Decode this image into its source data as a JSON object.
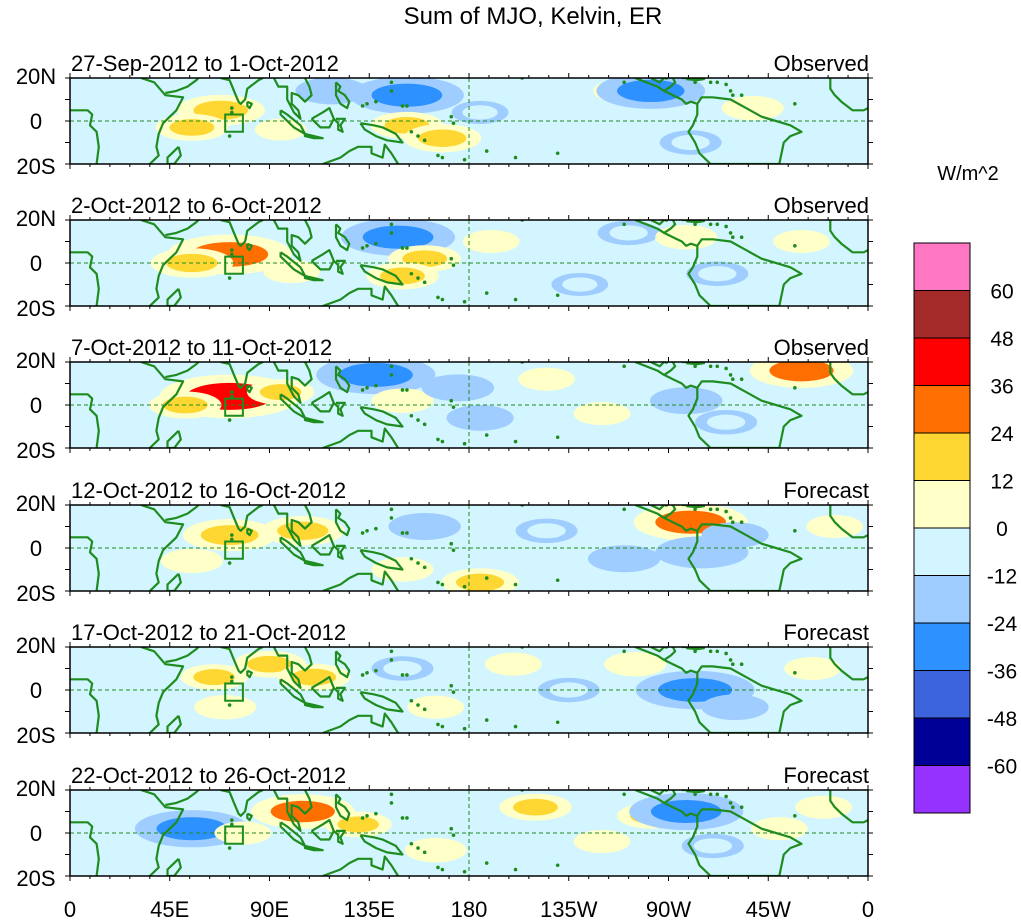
{
  "chart_data": {
    "type": "heatmap",
    "title": "Sum of MJO, Kelvin, ER",
    "y_tick_labels": [
      "20N",
      "0",
      "20S"
    ],
    "x_tick_labels": [
      "0",
      "45E",
      "90E",
      "135E",
      "180",
      "135W",
      "90W",
      "45W",
      "0"
    ],
    "lat_range": [
      -20,
      20
    ],
    "lon_range": [
      0,
      360
    ],
    "grid": false,
    "legend_position": "right",
    "panels": [
      {
        "label": "27-Sep-2012 to 1-Oct-2012",
        "type": "Observed",
        "anomalies": [
          {
            "lon": 68,
            "lat": 5,
            "value": 20
          },
          {
            "lon": 55,
            "lat": -3,
            "value": 14
          },
          {
            "lon": 95,
            "lat": -4,
            "value": 6
          },
          {
            "lon": 118,
            "lat": 14,
            "value": -14
          },
          {
            "lon": 152,
            "lat": 12,
            "value": -30
          },
          {
            "lon": 152,
            "lat": -2,
            "value": 14
          },
          {
            "lon": 168,
            "lat": -8,
            "value": 16
          },
          {
            "lon": 185,
            "lat": 4,
            "value": -8
          },
          {
            "lon": 250,
            "lat": 14,
            "value": 10
          },
          {
            "lon": 262,
            "lat": 14,
            "value": -28
          },
          {
            "lon": 280,
            "lat": -10,
            "value": -10
          },
          {
            "lon": 308,
            "lat": 6,
            "value": 10
          }
        ]
      },
      {
        "label": "2-Oct-2012 to 6-Oct-2012",
        "type": "Observed",
        "anomalies": [
          {
            "lon": 72,
            "lat": 4,
            "value": 34
          },
          {
            "lon": 55,
            "lat": 0,
            "value": 18
          },
          {
            "lon": 100,
            "lat": -4,
            "value": 8
          },
          {
            "lon": 148,
            "lat": 12,
            "value": -30
          },
          {
            "lon": 160,
            "lat": 2,
            "value": 14
          },
          {
            "lon": 150,
            "lat": -6,
            "value": 14
          },
          {
            "lon": 190,
            "lat": 10,
            "value": 8
          },
          {
            "lon": 230,
            "lat": -10,
            "value": -8
          },
          {
            "lon": 252,
            "lat": 14,
            "value": -10
          },
          {
            "lon": 278,
            "lat": 12,
            "value": 10
          },
          {
            "lon": 292,
            "lat": -5,
            "value": -10
          },
          {
            "lon": 330,
            "lat": 10,
            "value": 8
          }
        ]
      },
      {
        "label": "7-Oct-2012 to 11-Oct-2012",
        "type": "Observed",
        "anomalies": [
          {
            "lon": 72,
            "lat": 4,
            "value": 40
          },
          {
            "lon": 52,
            "lat": 0,
            "value": 14
          },
          {
            "lon": 95,
            "lat": 6,
            "value": 12
          },
          {
            "lon": 138,
            "lat": 14,
            "value": -32
          },
          {
            "lon": 150,
            "lat": 2,
            "value": 10
          },
          {
            "lon": 175,
            "lat": 8,
            "value": -14
          },
          {
            "lon": 185,
            "lat": -6,
            "value": -12
          },
          {
            "lon": 215,
            "lat": 12,
            "value": 8
          },
          {
            "lon": 240,
            "lat": -4,
            "value": 8
          },
          {
            "lon": 278,
            "lat": 2,
            "value": -14
          },
          {
            "lon": 296,
            "lat": -8,
            "value": -10
          },
          {
            "lon": 330,
            "lat": 16,
            "value": 26
          }
        ]
      },
      {
        "label": "12-Oct-2012 to 16-Oct-2012",
        "type": "Forecast",
        "anomalies": [
          {
            "lon": 72,
            "lat": 6,
            "value": 22
          },
          {
            "lon": 105,
            "lat": 8,
            "value": 18
          },
          {
            "lon": 55,
            "lat": -6,
            "value": 10
          },
          {
            "lon": 160,
            "lat": 10,
            "value": -14
          },
          {
            "lon": 150,
            "lat": -10,
            "value": 10
          },
          {
            "lon": 185,
            "lat": -16,
            "value": 16
          },
          {
            "lon": 215,
            "lat": 8,
            "value": -10
          },
          {
            "lon": 250,
            "lat": -5,
            "value": -14
          },
          {
            "lon": 280,
            "lat": 12,
            "value": 30
          },
          {
            "lon": 285,
            "lat": -2,
            "value": -22
          },
          {
            "lon": 300,
            "lat": 6,
            "value": -12
          },
          {
            "lon": 345,
            "lat": 10,
            "value": 8
          }
        ]
      },
      {
        "label": "17-Oct-2012 to 21-Oct-2012",
        "type": "Forecast",
        "anomalies": [
          {
            "lon": 65,
            "lat": 6,
            "value": 12
          },
          {
            "lon": 90,
            "lat": 12,
            "value": 14
          },
          {
            "lon": 110,
            "lat": 6,
            "value": 14
          },
          {
            "lon": 70,
            "lat": -8,
            "value": 10
          },
          {
            "lon": 150,
            "lat": 10,
            "value": -10
          },
          {
            "lon": 165,
            "lat": -8,
            "value": 8
          },
          {
            "lon": 200,
            "lat": 12,
            "value": 8
          },
          {
            "lon": 225,
            "lat": 0,
            "value": -10
          },
          {
            "lon": 255,
            "lat": 12,
            "value": 10
          },
          {
            "lon": 282,
            "lat": 0,
            "value": -32
          },
          {
            "lon": 300,
            "lat": -8,
            "value": -12
          },
          {
            "lon": 335,
            "lat": 10,
            "value": 8
          }
        ]
      },
      {
        "label": "22-Oct-2012 to 26-Oct-2012",
        "type": "Forecast",
        "anomalies": [
          {
            "lon": 55,
            "lat": 2,
            "value": -30
          },
          {
            "lon": 78,
            "lat": 0,
            "value": 8
          },
          {
            "lon": 105,
            "lat": 10,
            "value": 26
          },
          {
            "lon": 130,
            "lat": 4,
            "value": 12
          },
          {
            "lon": 165,
            "lat": -8,
            "value": 10
          },
          {
            "lon": 210,
            "lat": 12,
            "value": 14
          },
          {
            "lon": 240,
            "lat": -4,
            "value": 8
          },
          {
            "lon": 262,
            "lat": 8,
            "value": 12
          },
          {
            "lon": 278,
            "lat": 10,
            "value": -30
          },
          {
            "lon": 290,
            "lat": -6,
            "value": -10
          },
          {
            "lon": 320,
            "lat": 2,
            "value": 8
          },
          {
            "lon": 340,
            "lat": 12,
            "value": 8
          }
        ]
      }
    ],
    "colorbar": {
      "unit": "W/m^2",
      "levels": [
        "60",
        "48",
        "36",
        "24",
        "12",
        "0",
        "-12",
        "-24",
        "-36",
        "-48",
        "-60"
      ],
      "colors": [
        "#ff77c3",
        "#a52a2a",
        "#ff0000",
        "#ff6e00",
        "#ffd732",
        "#ffffc8",
        "#d2f5ff",
        "#a0cdff",
        "#2d91ff",
        "#3c64dc",
        "#000096",
        "#9632ff"
      ]
    }
  }
}
